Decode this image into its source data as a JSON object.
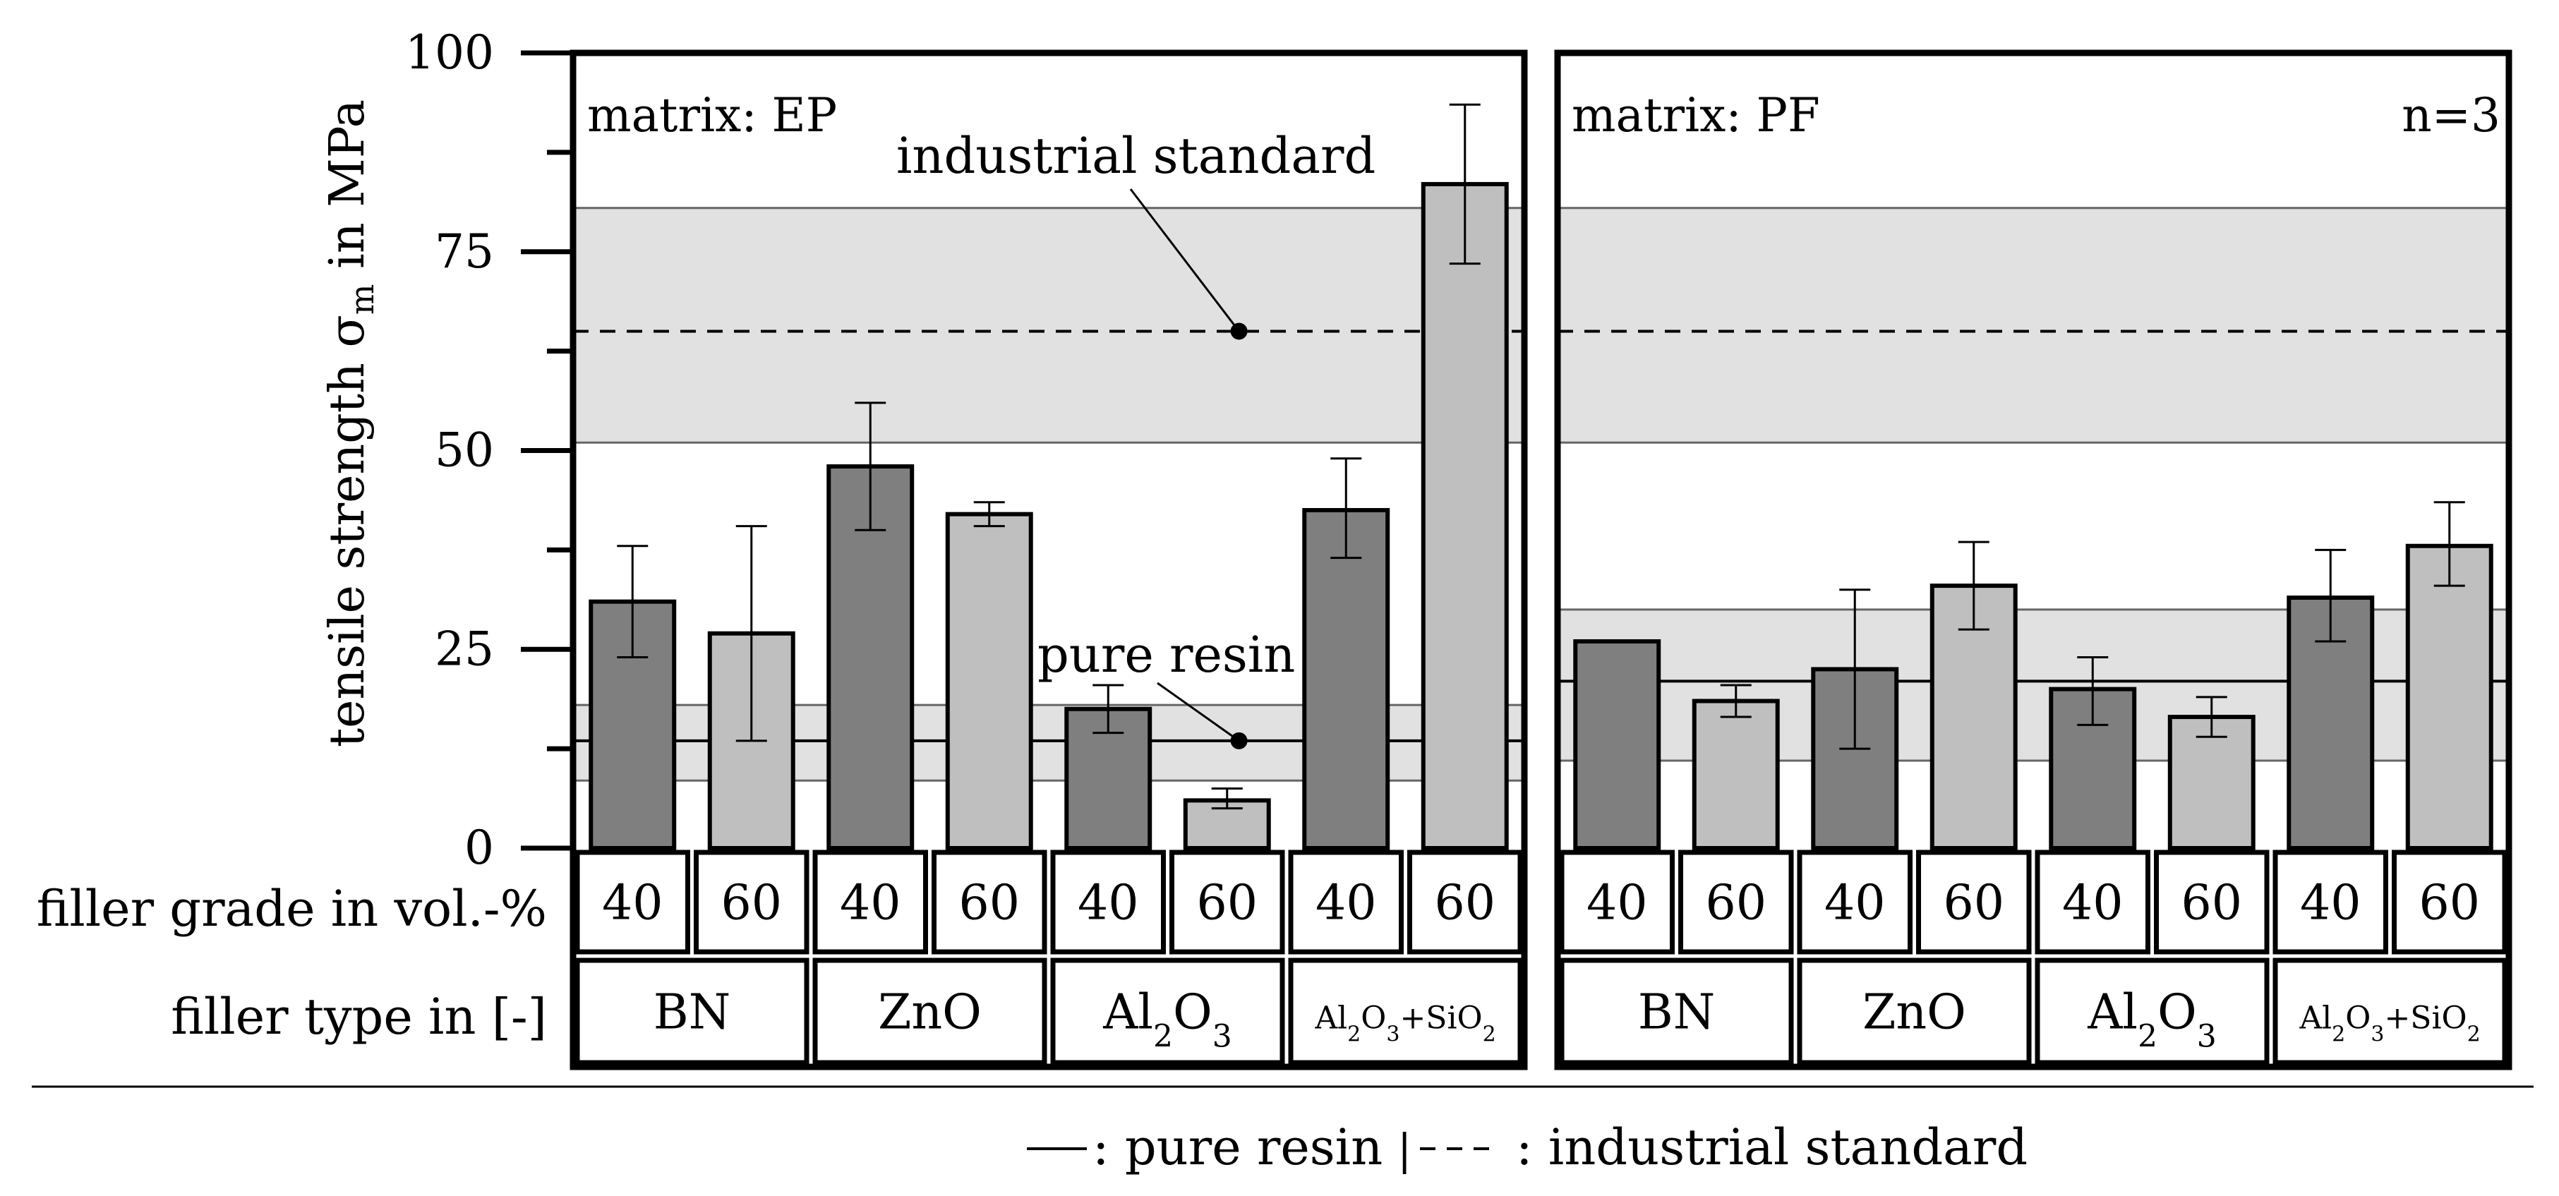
{
  "chart_data": {
    "type": "bar",
    "ylabel": "tensile strength σm in MPa",
    "ylabel_main": "tensile strength σ",
    "ylabel_sub": "m",
    "ylabel_tail": " in MPa",
    "ylim": [
      0,
      100
    ],
    "yticks": [
      "0",
      "25",
      "50",
      "75",
      "100"
    ],
    "sample_size": "n=3",
    "row_labels": {
      "grade": "filler grade in vol.-%",
      "type": "filler type in [-]"
    },
    "filler_types": [
      "BN",
      "ZnO",
      "Al2O3",
      "Al2O3+SiO2"
    ],
    "filler_grades": [
      "40",
      "60"
    ],
    "colors": {
      "grade_40": "#7f7f7f",
      "grade_60": "#bfbfbf",
      "band": "#e1e1e1"
    },
    "panels": [
      {
        "matrix_label": "matrix: EP",
        "values": [
          31,
          27,
          48,
          42,
          17.5,
          6,
          42.5,
          83.5
        ],
        "errors_low": [
          24,
          13.5,
          40,
          40.5,
          14.5,
          5,
          36.5,
          73.5
        ],
        "errors_high": [
          38,
          40.5,
          56,
          43.5,
          20.5,
          7.5,
          49,
          93.5
        ],
        "pure_resin": {
          "mean": 13.5,
          "low": 8.5,
          "high": 18
        },
        "industrial_standard": {
          "mean": 65,
          "low": 51,
          "high": 80.5
        },
        "annotations": {
          "industrial_standard": "industrial standard",
          "pure_resin": "pure resin"
        }
      },
      {
        "matrix_label": "matrix: PF",
        "values": [
          26,
          18.5,
          22.5,
          33,
          20,
          16.5,
          31.5,
          38
        ],
        "errors_low": [
          26,
          16.5,
          12.5,
          27.5,
          15.5,
          14,
          26,
          33
        ],
        "errors_high": [
          26,
          20.5,
          32.5,
          38.5,
          24,
          19,
          37.5,
          43.5
        ],
        "pure_resin": {
          "mean": 21,
          "low": 11,
          "high": 30
        },
        "industrial_standard": {
          "mean": 65,
          "low": 51,
          "high": 80.5
        }
      }
    ],
    "legend": {
      "solid": ": pure resin",
      "separator": "|",
      "dashed": ": industrial standard"
    }
  }
}
